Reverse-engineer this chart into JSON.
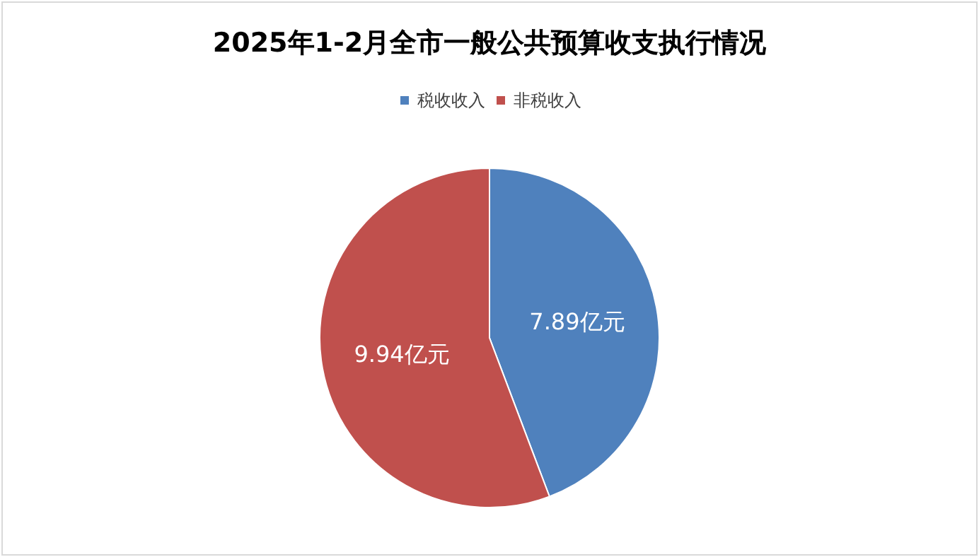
{
  "chart_data": {
    "type": "pie",
    "title": "2025年1-2月全市一般公共预算收支执行情况",
    "categories": [
      "税收收入",
      "非税收入"
    ],
    "values": [
      7.89,
      9.94
    ],
    "colors": [
      "#4f81bd",
      "#c0504d"
    ],
    "value_labels": [
      "7.89亿元",
      "9.94亿元"
    ],
    "legend": "top"
  }
}
